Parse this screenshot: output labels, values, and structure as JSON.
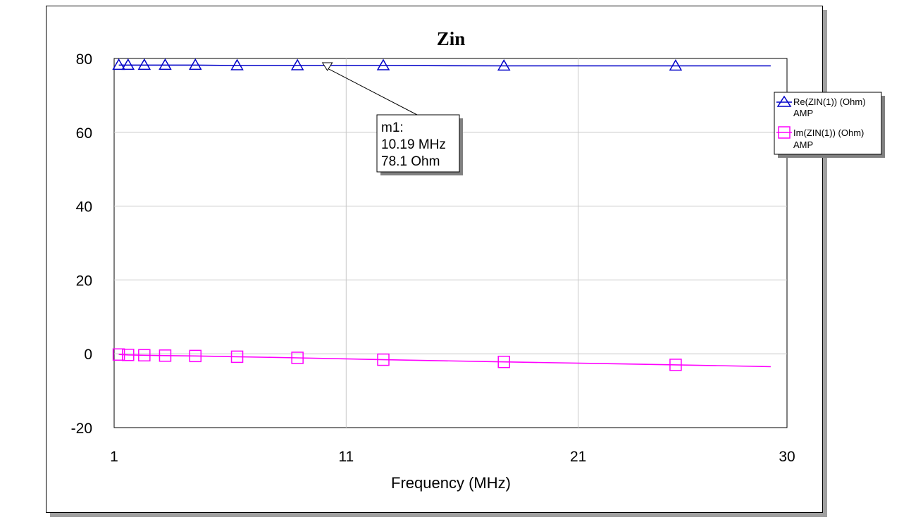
{
  "chart_data": {
    "type": "line",
    "title": "Zin",
    "xlabel": "Frequency (MHz)",
    "ylabel": "",
    "xlim": [
      1,
      30
    ],
    "ylim": [
      -20,
      80
    ],
    "x_ticks": [
      "1",
      "11",
      "21",
      "30"
    ],
    "y_ticks": [
      "80",
      "60",
      "40",
      "20",
      "0",
      "-20"
    ],
    "grid": true,
    "legend_position": "right",
    "series": [
      {
        "name": "Re(ZIN(1)) (Ohm)",
        "sub": "AMP",
        "color": "#0000c8",
        "symbol": "triangle-up",
        "x": [
          1.2,
          1.6,
          2.3,
          3.2,
          4.5,
          6.3,
          8.9,
          12.6,
          17.8,
          25.2,
          29.3
        ],
        "y": [
          78.2,
          78.2,
          78.2,
          78.2,
          78.2,
          78.1,
          78.1,
          78.1,
          78.0,
          78.0,
          78.0
        ]
      },
      {
        "name": "Im(ZIN(1)) (Ohm)",
        "sub": "AMP",
        "color": "#ff00ff",
        "symbol": "square",
        "x": [
          1.2,
          1.6,
          2.3,
          3.2,
          4.5,
          6.3,
          8.9,
          12.6,
          17.8,
          25.2,
          29.3
        ],
        "y": [
          -0.2,
          -0.3,
          -0.4,
          -0.5,
          -0.6,
          -0.8,
          -1.1,
          -1.6,
          -2.2,
          -3.0,
          -3.5
        ]
      }
    ],
    "markers_x": [
      [
        1.2,
        1.6,
        2.3,
        3.2,
        4.5,
        6.3,
        8.9,
        12.6,
        17.8,
        25.2
      ],
      [
        1.2,
        1.6,
        2.3,
        3.2,
        4.5,
        6.3,
        8.9,
        12.6,
        17.8,
        25.2
      ]
    ],
    "annotation": {
      "label": "m1:",
      "freq": "10.19 MHz",
      "value": "78.1 Ohm",
      "x": 10.19,
      "y": 78.1,
      "symbol": "triangle-down"
    }
  }
}
